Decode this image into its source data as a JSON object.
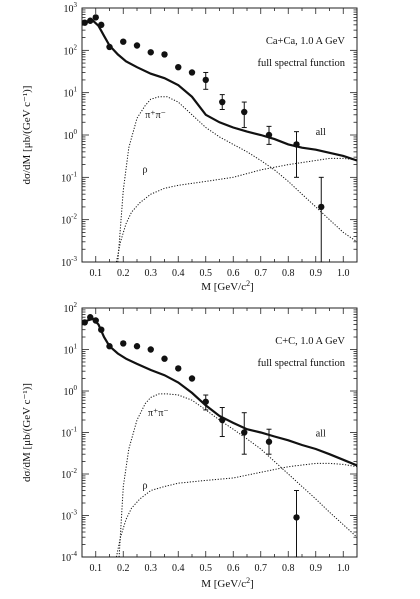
{
  "chart_data": [
    {
      "type": "line",
      "x_label_prefix": "M",
      "x_label_unit": "[GeV/c",
      "x_label_suffix": "]",
      "y_label": "dσ/dM  [μb/(GeV c⁻¹)]",
      "annotation_system": "Ca+Ca,  1.0 A GeV",
      "annotation_method": "full spectral function",
      "x_ticks": [
        "0.1",
        "0.2",
        "0.3",
        "0.4",
        "0.5",
        "0.6",
        "0.7",
        "0.8",
        "0.9",
        "1.0"
      ],
      "y_ticks_exp": [
        "3",
        "2",
        "1",
        "0",
        "-1",
        "-2",
        "-3"
      ],
      "xlim": [
        0.05,
        1.05
      ],
      "ylim_log10": [
        -3,
        3
      ],
      "y_scale": "log",
      "series": [
        {
          "name": "all",
          "line": "solid-thick",
          "x": [
            0.05,
            0.07,
            0.09,
            0.11,
            0.13,
            0.15,
            0.18,
            0.21,
            0.25,
            0.3,
            0.35,
            0.4,
            0.45,
            0.5,
            0.55,
            0.6,
            0.65,
            0.7,
            0.75,
            0.8,
            0.85,
            0.9,
            0.95,
            1.0,
            1.05
          ],
          "y": [
            400,
            480,
            500,
            380,
            220,
            130,
            80,
            55,
            40,
            28,
            22,
            15,
            8,
            3,
            2,
            1.5,
            1.2,
            1.0,
            0.8,
            0.6,
            0.5,
            0.45,
            0.38,
            0.32,
            0.25
          ]
        },
        {
          "name": "π⁺π⁻",
          "line": "dotted",
          "x": [
            0.18,
            0.2,
            0.22,
            0.25,
            0.28,
            0.3,
            0.33,
            0.36,
            0.4,
            0.45,
            0.5,
            0.55,
            0.6,
            0.65,
            0.7,
            0.75,
            0.8,
            0.85,
            0.9,
            0.95,
            1.0,
            1.05
          ],
          "y": [
            0.001,
            0.05,
            0.5,
            2.5,
            5,
            7,
            8,
            8,
            6,
            3,
            1.5,
            0.9,
            0.6,
            0.4,
            0.25,
            0.15,
            0.08,
            0.04,
            0.02,
            0.01,
            0.005,
            0.003
          ]
        },
        {
          "name": "ρ",
          "line": "dotted",
          "x": [
            0.175,
            0.19,
            0.21,
            0.23,
            0.26,
            0.3,
            0.35,
            0.4,
            0.5,
            0.6,
            0.7,
            0.8,
            0.9,
            0.95,
            1.0,
            1.05
          ],
          "y": [
            0.001,
            0.003,
            0.008,
            0.015,
            0.025,
            0.04,
            0.055,
            0.065,
            0.08,
            0.1,
            0.15,
            0.2,
            0.25,
            0.28,
            0.28,
            0.26
          ]
        }
      ],
      "points": {
        "x": [
          0.06,
          0.08,
          0.1,
          0.12,
          0.15,
          0.2,
          0.25,
          0.3,
          0.35,
          0.4,
          0.45,
          0.5,
          0.56,
          0.64,
          0.73,
          0.83,
          0.92
        ],
        "y": [
          450,
          500,
          600,
          400,
          120,
          160,
          130,
          90,
          80,
          40,
          30,
          20,
          6,
          3.5,
          1.0,
          0.6,
          0.02
        ],
        "err_lo": [
          null,
          null,
          null,
          null,
          null,
          null,
          null,
          null,
          null,
          null,
          null,
          12,
          4,
          1.5,
          0.6,
          0.1,
          0.001
        ],
        "err_hi": [
          null,
          null,
          null,
          null,
          null,
          null,
          null,
          null,
          null,
          null,
          null,
          30,
          9,
          6,
          1.6,
          1.2,
          0.1
        ]
      },
      "curve_labels": [
        {
          "text": "π⁺π⁻",
          "x": 0.28,
          "y": 2.5
        },
        {
          "text": "ρ",
          "x": 0.27,
          "y": 0.13
        },
        {
          "text": "all",
          "x": 0.9,
          "y": 1.0
        }
      ]
    },
    {
      "type": "line",
      "x_label_prefix": "M",
      "x_label_unit": "[GeV/c",
      "x_label_suffix": "]",
      "y_label": "dσ/dM  [μb/(GeV c⁻¹)]",
      "annotation_system": "C+C,  1.0 A GeV",
      "annotation_method": "full spectral function",
      "x_ticks": [
        "0.1",
        "0.2",
        "0.3",
        "0.4",
        "0.5",
        "0.6",
        "0.7",
        "0.8",
        "0.9",
        "1.0"
      ],
      "y_ticks_exp": [
        "2",
        "1",
        "0",
        "-1",
        "-2",
        "-3",
        "-4"
      ],
      "xlim": [
        0.05,
        1.05
      ],
      "ylim_log10": [
        -4,
        2
      ],
      "y_scale": "log",
      "series": [
        {
          "name": "all",
          "line": "solid-thick",
          "x": [
            0.05,
            0.07,
            0.09,
            0.11,
            0.13,
            0.15,
            0.18,
            0.21,
            0.25,
            0.3,
            0.35,
            0.4,
            0.45,
            0.5,
            0.55,
            0.6,
            0.65,
            0.7,
            0.75,
            0.8,
            0.85,
            0.9,
            0.95,
            1.0,
            1.05
          ],
          "y": [
            40,
            50,
            55,
            40,
            20,
            12,
            8,
            6,
            4.5,
            3.2,
            2.4,
            1.6,
            0.9,
            0.45,
            0.25,
            0.17,
            0.12,
            0.1,
            0.08,
            0.065,
            0.05,
            0.04,
            0.03,
            0.022,
            0.016
          ]
        },
        {
          "name": "π⁺π⁻",
          "line": "dotted",
          "x": [
            0.185,
            0.2,
            0.22,
            0.25,
            0.28,
            0.3,
            0.33,
            0.36,
            0.4,
            0.45,
            0.5,
            0.55,
            0.6,
            0.65,
            0.7,
            0.75,
            0.8,
            0.85,
            0.9,
            0.95,
            1.0,
            1.05
          ],
          "y": [
            0.0001,
            0.005,
            0.04,
            0.2,
            0.5,
            0.7,
            0.85,
            0.85,
            0.8,
            0.6,
            0.35,
            0.2,
            0.12,
            0.07,
            0.04,
            0.02,
            0.01,
            0.005,
            0.0025,
            0.0012,
            0.0006,
            0.0003
          ]
        },
        {
          "name": "ρ",
          "line": "dotted",
          "x": [
            0.175,
            0.19,
            0.21,
            0.23,
            0.26,
            0.3,
            0.35,
            0.4,
            0.5,
            0.6,
            0.7,
            0.8,
            0.9,
            0.95,
            1.0,
            1.05
          ],
          "y": [
            0.0001,
            0.0003,
            0.0008,
            0.0015,
            0.0025,
            0.004,
            0.005,
            0.006,
            0.007,
            0.008,
            0.011,
            0.015,
            0.018,
            0.018,
            0.017,
            0.015
          ]
        }
      ],
      "points": {
        "x": [
          0.06,
          0.08,
          0.1,
          0.12,
          0.15,
          0.2,
          0.25,
          0.3,
          0.35,
          0.4,
          0.45,
          0.5,
          0.56,
          0.64,
          0.73,
          0.83
        ],
        "y": [
          45,
          60,
          50,
          30,
          12,
          14,
          12,
          10,
          6,
          3.5,
          2,
          0.55,
          0.2,
          0.1,
          0.06,
          0.0009
        ],
        "err_lo": [
          null,
          null,
          null,
          null,
          null,
          null,
          null,
          null,
          null,
          null,
          null,
          0.35,
          0.08,
          0.03,
          0.03,
          0.0001
        ],
        "err_hi": [
          null,
          null,
          null,
          null,
          null,
          null,
          null,
          null,
          null,
          null,
          null,
          0.8,
          0.4,
          0.3,
          0.12,
          0.004
        ]
      },
      "curve_labels": [
        {
          "text": "π⁺π⁻",
          "x": 0.29,
          "y": 0.25
        },
        {
          "text": "ρ",
          "x": 0.27,
          "y": 0.0045
        },
        {
          "text": "all",
          "x": 0.9,
          "y": 0.08
        }
      ]
    }
  ]
}
